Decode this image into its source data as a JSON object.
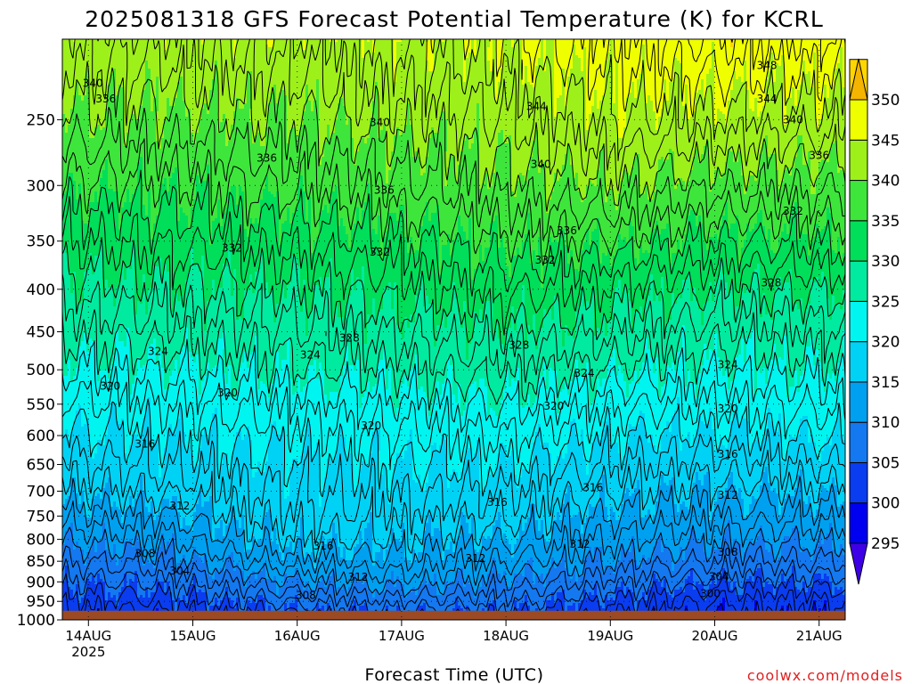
{
  "title": "2025081318 GFS Forecast Potential Temperature (K) for KCRL",
  "credit": "coolwx.com/models",
  "chart_data": {
    "type": "heatmap",
    "title": "2025081318 GFS Forecast Potential Temperature (K) for KCRL",
    "xlabel": "Forecast Time (UTC)",
    "ylabel": "",
    "x_range_hours": [
      0,
      180
    ],
    "x_ticks": [
      {
        "label": "14AUG",
        "sublabel": "2025",
        "hour": 6
      },
      {
        "label": "15AUG",
        "hour": 30
      },
      {
        "label": "16AUG",
        "hour": 54
      },
      {
        "label": "17AUG",
        "hour": 78
      },
      {
        "label": "18AUG",
        "hour": 102
      },
      {
        "label": "19AUG",
        "hour": 126
      },
      {
        "label": "20AUG",
        "hour": 150
      },
      {
        "label": "21AUG",
        "hour": 174
      }
    ],
    "y_scale": "log",
    "y_range_hpa": [
      200,
      1000
    ],
    "y_ticks": [
      250,
      300,
      350,
      400,
      450,
      500,
      550,
      600,
      650,
      700,
      750,
      800,
      850,
      900,
      950,
      1000
    ],
    "surface_pressure_hpa": 975,
    "ground_color": "#9c4a24",
    "grid": true,
    "colorbar": {
      "labels": [
        295,
        300,
        305,
        310,
        315,
        320,
        325,
        330,
        335,
        340,
        345,
        350
      ],
      "bounds": [
        290,
        295,
        300,
        305,
        310,
        315,
        320,
        325,
        330,
        335,
        340,
        345,
        350,
        355
      ],
      "colors": [
        "#3d00e6",
        "#0000f0",
        "#0a3cf0",
        "#1478f0",
        "#00a0f0",
        "#00d2f5",
        "#00f5f0",
        "#00eba0",
        "#00de5a",
        "#3ee63c",
        "#9ef01a",
        "#f0ff00",
        "#ffd700",
        "#f5b400"
      ]
    },
    "isotherm_interval_K": 2,
    "theta_profiles": [
      {
        "hour": 0,
        "pressure_hpa": [
          200,
          250,
          300,
          350,
          400,
          450,
          500,
          550,
          600,
          650,
          700,
          750,
          800,
          850,
          900,
          950,
          1000
        ],
        "theta_K": [
          343,
          339.5,
          335.5,
          332,
          329,
          326.5,
          324,
          321.5,
          319.5,
          317.5,
          315.5,
          313,
          310.5,
          308,
          305.5,
          303,
          301
        ]
      },
      {
        "hour": 24,
        "pressure_hpa": [
          200,
          250,
          300,
          350,
          400,
          450,
          500,
          550,
          600,
          650,
          700,
          750,
          800,
          850,
          900,
          950,
          1000
        ],
        "theta_K": [
          343,
          339.5,
          335.5,
          332.5,
          329.5,
          327,
          324.5,
          322,
          320,
          318.5,
          316.5,
          314,
          311.5,
          309,
          306,
          303.5,
          301.5
        ]
      },
      {
        "hour": 54,
        "pressure_hpa": [
          200,
          250,
          300,
          350,
          400,
          450,
          500,
          550,
          600,
          650,
          700,
          750,
          800,
          850,
          900,
          950,
          1000
        ],
        "theta_K": [
          343.5,
          340,
          336.5,
          333,
          330,
          327.5,
          325.5,
          323,
          321,
          319.5,
          318.5,
          317.5,
          316,
          313.5,
          310,
          306.5,
          303
        ]
      },
      {
        "hour": 78,
        "pressure_hpa": [
          200,
          250,
          300,
          350,
          400,
          450,
          500,
          550,
          600,
          650,
          700,
          750,
          800,
          850,
          900,
          950,
          1000
        ],
        "theta_K": [
          344,
          341,
          337.5,
          334,
          331,
          328.5,
          326,
          323.5,
          321.5,
          320,
          318.5,
          317,
          315.5,
          313.5,
          311,
          307.5,
          304
        ]
      },
      {
        "hour": 102,
        "pressure_hpa": [
          200,
          250,
          300,
          350,
          400,
          450,
          500,
          550,
          600,
          650,
          700,
          750,
          800,
          850,
          900,
          950,
          1000
        ],
        "theta_K": [
          345.5,
          342,
          339,
          335.5,
          332.5,
          329.5,
          327,
          324.5,
          322,
          320,
          318,
          316.5,
          314.5,
          312,
          309.5,
          306.5,
          303.5
        ]
      },
      {
        "hour": 126,
        "pressure_hpa": [
          200,
          250,
          300,
          350,
          400,
          450,
          500,
          550,
          600,
          650,
          700,
          750,
          800,
          850,
          900,
          950,
          1000
        ],
        "theta_K": [
          347,
          344,
          340,
          335.5,
          331.5,
          328.5,
          325.5,
          322.5,
          320,
          318,
          316,
          314,
          312,
          310,
          307,
          304,
          301.5
        ]
      },
      {
        "hour": 150,
        "pressure_hpa": [
          200,
          250,
          300,
          350,
          400,
          450,
          500,
          550,
          600,
          650,
          700,
          750,
          800,
          850,
          900,
          950,
          1000
        ],
        "theta_K": [
          348,
          343.5,
          338.5,
          334,
          330,
          327,
          324.5,
          322,
          319.5,
          317,
          315,
          313,
          310.5,
          308,
          305,
          302,
          300
        ]
      },
      {
        "hour": 180,
        "pressure_hpa": [
          200,
          250,
          300,
          350,
          400,
          450,
          500,
          550,
          600,
          650,
          700,
          750,
          800,
          850,
          900,
          950,
          1000
        ],
        "theta_K": [
          347.5,
          343,
          338.5,
          334.5,
          330.5,
          327.5,
          325,
          322.5,
          320.5,
          318,
          315.5,
          313,
          310.5,
          308,
          305,
          302,
          300
        ]
      }
    ],
    "contour_labels": [
      {
        "text": "340",
        "hour": 7,
        "pressure_hpa": 226
      },
      {
        "text": "336",
        "hour": 10,
        "pressure_hpa": 236
      },
      {
        "text": "336",
        "hour": 47,
        "pressure_hpa": 278
      },
      {
        "text": "340",
        "hour": 73,
        "pressure_hpa": 252
      },
      {
        "text": "336",
        "hour": 74,
        "pressure_hpa": 304
      },
      {
        "text": "332",
        "hour": 39,
        "pressure_hpa": 357
      },
      {
        "text": "332",
        "hour": 73,
        "pressure_hpa": 361
      },
      {
        "text": "332",
        "hour": 111,
        "pressure_hpa": 369
      },
      {
        "text": "336",
        "hour": 116,
        "pressure_hpa": 340
      },
      {
        "text": "344",
        "hour": 109,
        "pressure_hpa": 241
      },
      {
        "text": "340",
        "hour": 110,
        "pressure_hpa": 283
      },
      {
        "text": "348",
        "hour": 162,
        "pressure_hpa": 215
      },
      {
        "text": "344",
        "hour": 162,
        "pressure_hpa": 236
      },
      {
        "text": "340",
        "hour": 168,
        "pressure_hpa": 250
      },
      {
        "text": "336",
        "hour": 174,
        "pressure_hpa": 276
      },
      {
        "text": "332",
        "hour": 168,
        "pressure_hpa": 322
      },
      {
        "text": "328",
        "hour": 163,
        "pressure_hpa": 393
      },
      {
        "text": "328",
        "hour": 66,
        "pressure_hpa": 458
      },
      {
        "text": "328",
        "hour": 105,
        "pressure_hpa": 467
      },
      {
        "text": "324",
        "hour": 22,
        "pressure_hpa": 475
      },
      {
        "text": "324",
        "hour": 57,
        "pressure_hpa": 480
      },
      {
        "text": "324",
        "hour": 120,
        "pressure_hpa": 505
      },
      {
        "text": "324",
        "hour": 153,
        "pressure_hpa": 493
      },
      {
        "text": "320",
        "hour": 11,
        "pressure_hpa": 523
      },
      {
        "text": "320",
        "hour": 38,
        "pressure_hpa": 533
      },
      {
        "text": "320",
        "hour": 71,
        "pressure_hpa": 584
      },
      {
        "text": "320",
        "hour": 113,
        "pressure_hpa": 553
      },
      {
        "text": "320",
        "hour": 153,
        "pressure_hpa": 557
      },
      {
        "text": "316",
        "hour": 19,
        "pressure_hpa": 614
      },
      {
        "text": "316",
        "hour": 153,
        "pressure_hpa": 632
      },
      {
        "text": "316",
        "hour": 122,
        "pressure_hpa": 693
      },
      {
        "text": "316",
        "hour": 100,
        "pressure_hpa": 722
      },
      {
        "text": "316",
        "hour": 60,
        "pressure_hpa": 815
      },
      {
        "text": "312",
        "hour": 27,
        "pressure_hpa": 729
      },
      {
        "text": "312",
        "hour": 153,
        "pressure_hpa": 708
      },
      {
        "text": "312",
        "hour": 95,
        "pressure_hpa": 843
      },
      {
        "text": "312",
        "hour": 119,
        "pressure_hpa": 811
      },
      {
        "text": "312",
        "hour": 68,
        "pressure_hpa": 888
      },
      {
        "text": "308",
        "hour": 19,
        "pressure_hpa": 832
      },
      {
        "text": "308",
        "hour": 56,
        "pressure_hpa": 934
      },
      {
        "text": "308",
        "hour": 153,
        "pressure_hpa": 829
      },
      {
        "text": "304",
        "hour": 27,
        "pressure_hpa": 873
      },
      {
        "text": "304",
        "hour": 151,
        "pressure_hpa": 887
      },
      {
        "text": "300",
        "hour": 149,
        "pressure_hpa": 930
      }
    ]
  }
}
